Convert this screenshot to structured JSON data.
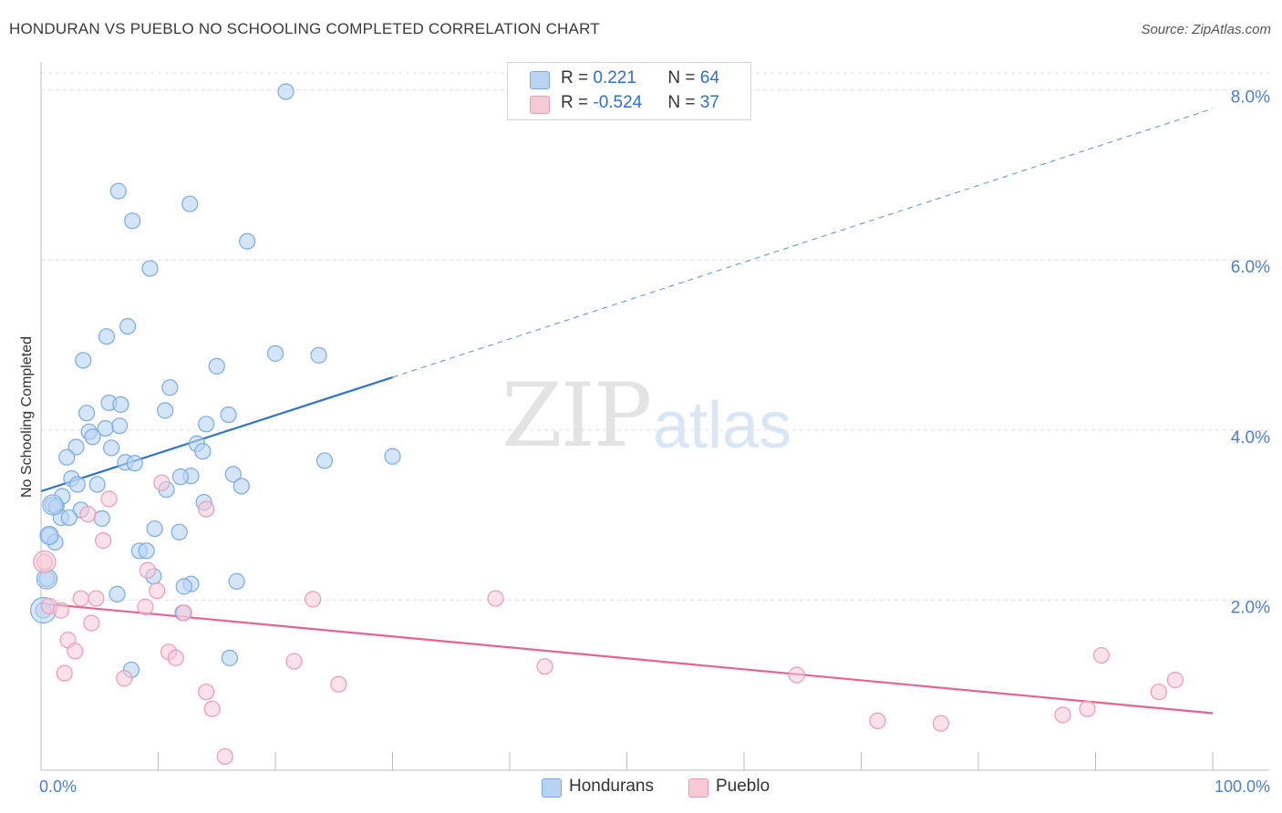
{
  "title": "HONDURAN VS PUEBLO NO SCHOOLING COMPLETED CORRELATION CHART",
  "source": "Source: ZipAtlas.com",
  "watermark": {
    "zip": "ZIP",
    "atlas": "atlas"
  },
  "legend_top": {
    "rows": [
      {
        "r_label": "R = ",
        "r_value": " 0.221",
        "n_label": "N = ",
        "n_value": "64"
      },
      {
        "r_label": "R = ",
        "r_value": "-0.524",
        "n_label": "N = ",
        "n_value": "37"
      }
    ]
  },
  "legend_bottom": {
    "hondurans": "Hondurans",
    "pueblo": "Pueblo"
  },
  "colors": {
    "hondurans_fill": "#b9d3f3",
    "hondurans_stroke": "#7aaae6",
    "hondurans_line": "#2f72cf",
    "pueblo_fill": "#f7c9d7",
    "pueblo_stroke": "#ee9ab5",
    "pueblo_line": "#e8628f",
    "tick": "#4a7fd4",
    "grid": "#e0e0e0"
  },
  "chart_data": {
    "type": "scatter",
    "title": "HONDURAN VS PUEBLO NO SCHOOLING COMPLETED CORRELATION CHART",
    "xlabel": "",
    "ylabel": "No Schooling Completed",
    "xlim": [
      0,
      100
    ],
    "ylim": [
      0,
      8.2
    ],
    "x_tick_labels": [
      "0.0%",
      "100.0%"
    ],
    "y_ticks": [
      2,
      4,
      6,
      8
    ],
    "y_tick_labels": [
      "2.0%",
      "4.0%",
      "6.0%",
      "8.0%"
    ],
    "grid": true,
    "series": [
      {
        "name": "Hondurans",
        "r": 0.221,
        "n": 64,
        "trend": {
          "x0": 0,
          "y0": 3.28,
          "x1": 30,
          "y1": 4.62,
          "dash_x1": 100,
          "dash_y1": 7.78
        },
        "points": [
          [
            20.9,
            7.98
          ],
          [
            6.6,
            6.81
          ],
          [
            12.7,
            6.66
          ],
          [
            7.8,
            6.46
          ],
          [
            17.6,
            6.22
          ],
          [
            9.3,
            5.9
          ],
          [
            7.4,
            5.22
          ],
          [
            5.6,
            5.1
          ],
          [
            20.0,
            4.9
          ],
          [
            23.7,
            4.88
          ],
          [
            3.6,
            4.82
          ],
          [
            15.0,
            4.75
          ],
          [
            11.0,
            4.5
          ],
          [
            5.8,
            4.32
          ],
          [
            6.8,
            4.3
          ],
          [
            3.9,
            4.2
          ],
          [
            10.6,
            4.23
          ],
          [
            16.0,
            4.18
          ],
          [
            14.1,
            4.07
          ],
          [
            6.7,
            4.05
          ],
          [
            5.5,
            4.02
          ],
          [
            4.1,
            3.98
          ],
          [
            4.4,
            3.92
          ],
          [
            13.3,
            3.84
          ],
          [
            3.0,
            3.8
          ],
          [
            6.0,
            3.79
          ],
          [
            13.8,
            3.75
          ],
          [
            2.2,
            3.68
          ],
          [
            30.0,
            3.69
          ],
          [
            7.2,
            3.62
          ],
          [
            8.0,
            3.61
          ],
          [
            24.2,
            3.64
          ],
          [
            16.4,
            3.48
          ],
          [
            12.8,
            3.46
          ],
          [
            11.9,
            3.45
          ],
          [
            2.6,
            3.43
          ],
          [
            4.8,
            3.36
          ],
          [
            3.1,
            3.36
          ],
          [
            17.1,
            3.34
          ],
          [
            10.7,
            3.3
          ],
          [
            1.8,
            3.22
          ],
          [
            13.9,
            3.15
          ],
          [
            1.0,
            3.12
          ],
          [
            1.3,
            3.1
          ],
          [
            3.4,
            3.06
          ],
          [
            1.7,
            2.97
          ],
          [
            2.4,
            2.97
          ],
          [
            5.2,
            2.96
          ],
          [
            9.7,
            2.84
          ],
          [
            11.8,
            2.8
          ],
          [
            0.7,
            2.76
          ],
          [
            1.2,
            2.68
          ],
          [
            8.4,
            2.58
          ],
          [
            9.0,
            2.58
          ],
          [
            9.6,
            2.28
          ],
          [
            0.5,
            2.25
          ],
          [
            16.7,
            2.22
          ],
          [
            12.8,
            2.19
          ],
          [
            12.2,
            2.16
          ],
          [
            6.5,
            2.07
          ],
          [
            12.1,
            1.85
          ],
          [
            0.2,
            1.88
          ],
          [
            16.1,
            1.32
          ],
          [
            7.7,
            1.18
          ]
        ]
      },
      {
        "name": "Pueblo",
        "r": -0.524,
        "n": 37,
        "trend": {
          "x0": 0,
          "y0": 1.96,
          "x1": 100,
          "y1": 0.67
        },
        "points": [
          [
            0.3,
            2.45
          ],
          [
            10.3,
            3.38
          ],
          [
            14.1,
            3.07
          ],
          [
            5.8,
            3.19
          ],
          [
            4.0,
            3.01
          ],
          [
            5.3,
            2.7
          ],
          [
            9.1,
            2.35
          ],
          [
            9.9,
            2.11
          ],
          [
            3.4,
            2.02
          ],
          [
            4.7,
            2.02
          ],
          [
            23.2,
            2.01
          ],
          [
            38.8,
            2.02
          ],
          [
            8.9,
            1.92
          ],
          [
            0.7,
            1.93
          ],
          [
            1.7,
            1.88
          ],
          [
            12.2,
            1.85
          ],
          [
            4.3,
            1.73
          ],
          [
            2.3,
            1.53
          ],
          [
            2.9,
            1.4
          ],
          [
            10.9,
            1.39
          ],
          [
            11.5,
            1.32
          ],
          [
            21.6,
            1.28
          ],
          [
            43.0,
            1.22
          ],
          [
            90.5,
            1.35
          ],
          [
            2.0,
            1.14
          ],
          [
            7.1,
            1.08
          ],
          [
            64.5,
            1.12
          ],
          [
            25.4,
            1.01
          ],
          [
            14.1,
            0.92
          ],
          [
            96.8,
            1.06
          ],
          [
            95.4,
            0.92
          ],
          [
            14.6,
            0.72
          ],
          [
            87.2,
            0.65
          ],
          [
            89.3,
            0.72
          ],
          [
            71.4,
            0.58
          ],
          [
            76.8,
            0.55
          ],
          [
            15.7,
            0.16
          ]
        ]
      }
    ]
  }
}
